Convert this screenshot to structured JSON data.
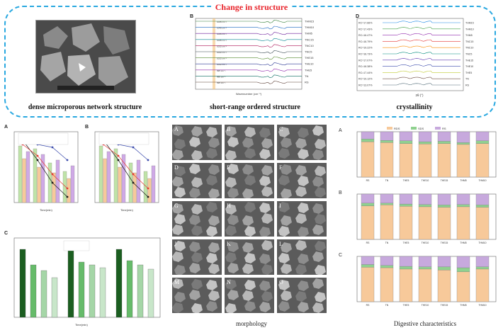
{
  "title": "Change in structure",
  "captions": {
    "sem": "dense microporous network structure",
    "ftir": "short-range ordered structure",
    "xrd": "crystallinity",
    "morphology": "morphology",
    "digestive": "Digestive characteristics"
  },
  "ftir": {
    "panel_label": "B",
    "xlabel": "Wavenumber (cm⁻¹)",
    "series": [
      "THM15",
      "THM10",
      "THM5",
      "TNC15",
      "TNC10",
      "TNC5",
      "THE15",
      "THE10",
      "THE5",
      "TN",
      "RS"
    ],
    "peak_labels": [
      "1045 cm⁻¹",
      "1022 cm⁻¹",
      "995 cm⁻¹"
    ]
  },
  "xrd": {
    "panel_label": "D",
    "xlabel": "2θ (°)",
    "rc_values": [
      "RC=17.66%",
      "RC=17.43%",
      "RC=16.47%",
      "RC=16.79%",
      "RC=19.22%",
      "RC=16.73%",
      "RC=17.07%",
      "RC=16.38%",
      "RC=17.44%",
      "RC=19.12%",
      "RC=13.07%"
    ],
    "series": [
      "THM15",
      "THM10",
      "THM5",
      "TNC15",
      "TNC10",
      "TNC5",
      "THE15",
      "THE10",
      "THE5",
      "TN",
      "RS"
    ]
  },
  "morph_labels": [
    "A",
    "B",
    "C",
    "D",
    "E",
    "F",
    "G",
    "H",
    "I",
    "J",
    "K",
    "L",
    "M",
    "N",
    "O"
  ],
  "left_panels": {
    "a": {
      "label": "A",
      "xlabel": "Time(min)",
      "legend": [
        "Sample",
        "Sample",
        "Sample",
        "Sample",
        "Sample",
        "Sample"
      ]
    },
    "b": {
      "label": "B",
      "xlabel": "Time(min)"
    },
    "c": {
      "label": "C",
      "xlabel": "Time(min)"
    }
  },
  "digestive": {
    "legend": [
      "RDS",
      "SDS",
      "RS"
    ],
    "panels": [
      "A",
      "B",
      "C"
    ],
    "categories": [
      "RS",
      "TN",
      "THE5",
      "THE10",
      "THE15",
      "THM5",
      "THM10"
    ],
    "colors": {
      "RDS": "#f7c99a",
      "SDS": "#8fd18f",
      "RS": "#c7a9dd"
    }
  },
  "colors": {
    "accent_title": "#e8232a",
    "dash": "#29a8e0"
  }
}
